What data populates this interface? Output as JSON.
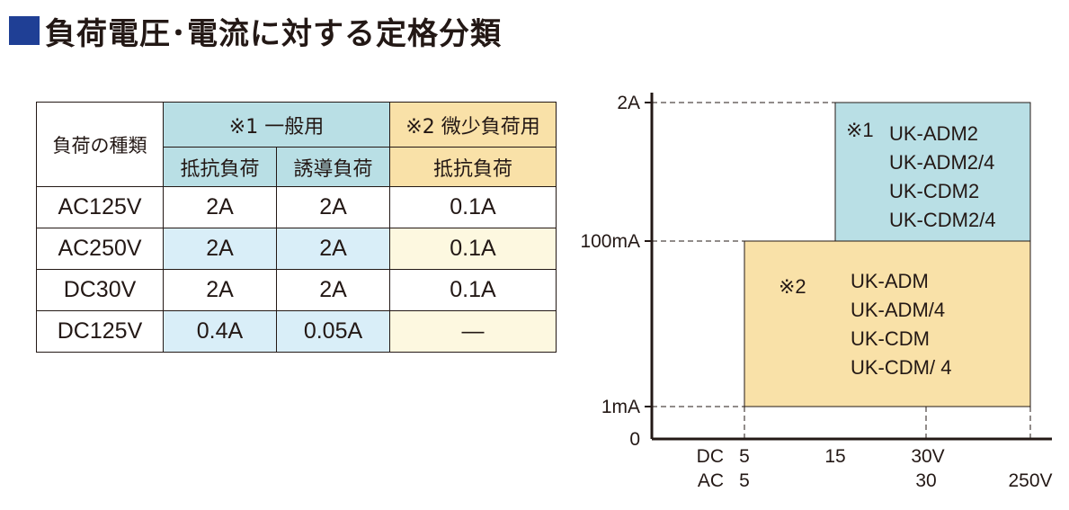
{
  "title": "負荷電圧･電流に対する定格分類",
  "colors": {
    "title_square": "#1f3f95",
    "blue_header": "#b9dfe5",
    "blue_cell": "#d9eef8",
    "yellow_header": "#f9e1a8",
    "yellow_cell": "#fdf8e0",
    "chart_box1": "#b9dfe5",
    "chart_box2": "#f9e1a8"
  },
  "table": {
    "load_type_header": "負荷の種類",
    "group1_header": "※1 一般用",
    "group2_header": "※2 微少負荷用",
    "sub_resistive_1": "抵抗負荷",
    "sub_inductive": "誘導負荷",
    "sub_resistive_2": "抵抗負荷",
    "rows": [
      {
        "label": "AC125V",
        "resistive": "2A",
        "inductive": "2A",
        "micro": "0.1A"
      },
      {
        "label": "AC250V",
        "resistive": "2A",
        "inductive": "2A",
        "micro": "0.1A"
      },
      {
        "label": "DC30V",
        "resistive": "2A",
        "inductive": "2A",
        "micro": "0.1A"
      },
      {
        "label": "DC125V",
        "resistive": "0.4A",
        "inductive": "0.05A",
        "micro": "—"
      }
    ]
  },
  "chart_data": {
    "type": "area",
    "y_ticks": [
      "0",
      "1mA",
      "100mA",
      "2A"
    ],
    "x_ticks": [
      {
        "dc": "5",
        "ac": "5"
      },
      {
        "dc": "15",
        "ac": ""
      },
      {
        "dc": "30V",
        "ac": "30"
      },
      {
        "dc": "",
        "ac": "250V"
      }
    ],
    "x_prefix_dc": "DC",
    "x_prefix_ac": "AC",
    "regions": [
      {
        "label": "※1",
        "x": [
          "15",
          "250V"
        ],
        "y": [
          "100mA",
          "2A"
        ],
        "models": [
          "UK-ADM2",
          "UK-ADM2/4",
          "UK-CDM2",
          "UK-CDM2/4"
        ]
      },
      {
        "label": "※2",
        "x": [
          "5",
          "250V"
        ],
        "y": [
          "1mA",
          "100mA"
        ],
        "models": [
          "UK-ADM",
          "UK-ADM/4",
          "UK-CDM",
          "UK-CDM/ 4"
        ]
      }
    ]
  }
}
